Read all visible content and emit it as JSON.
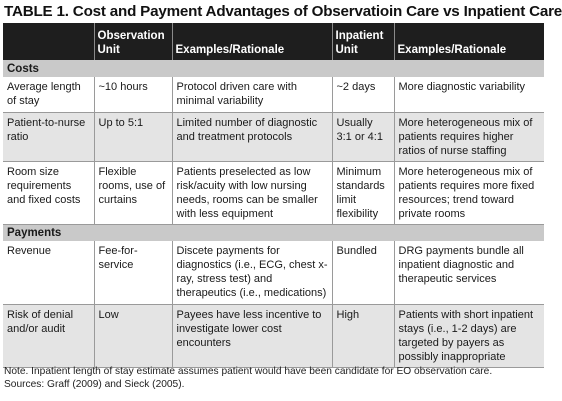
{
  "title": "TABLE 1. Cost and Payment Advantages of Observatioin Care vs Inpatient Care",
  "headers": [
    "",
    "Observation Unit",
    "Examples/Rationale",
    "Inpatient Unit",
    "Examples/Rationale"
  ],
  "sections": [
    {
      "label": "Costs",
      "rows": [
        [
          "Average length of stay",
          "~10 hours",
          "Protocol driven care with minimal variability",
          "~2 days",
          "More diagnostic variability"
        ],
        [
          "Patient-to-nurse ratio",
          "Up to 5:1",
          "Limited number of diagnostic and treatment protocols",
          "Usually 3:1 or 4:1",
          "More heterogeneous mix of patients requires higher ratios of nurse staffing"
        ],
        [
          "Room size requirements and fixed costs",
          "Flexible rooms, use of curtains",
          "Patients preselected as low risk/acuity with low nursing needs, rooms can be smaller with less equipment",
          "Minimum standards limit flexibility",
          "More heterogeneous mix of patients requires more fixed resources; trend toward private rooms"
        ]
      ]
    },
    {
      "label": "Payments",
      "rows": [
        [
          "Revenue",
          "Fee-for-service",
          "Discete payments for diagnostics (i.e., ECG, chest x-ray, stress test) and therapeutics (i.e., medications)",
          "Bundled",
          "DRG payments bundle all inpatient diagnostic and therapeutic services"
        ],
        [
          "Risk of denial and/or audit",
          "Low",
          "Payees have less incentive to investigate lower cost encounters",
          "High",
          "Patients with short inpatient stays (i.e., 1-2 days) are targeted by payers as possibly inappropriate"
        ]
      ]
    }
  ],
  "note": "Note. Inpatient length of stay estimate assumes patient would have been candidate for EO observation care.",
  "sources": "Sources: Graff (2009) and Sieck (2005)."
}
